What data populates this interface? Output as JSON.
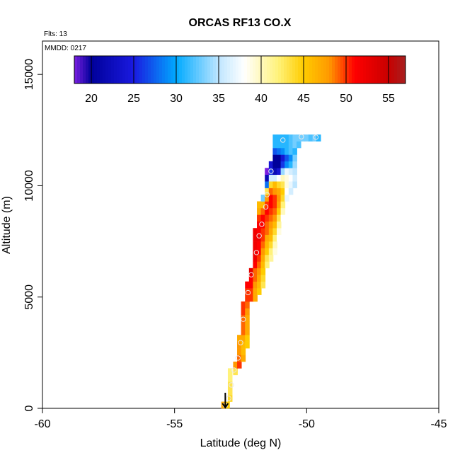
{
  "chart_data": {
    "type": "heatmap",
    "title": "ORCAS RF13 CO.X",
    "subtitle": "Flts: 13",
    "annotation": "MMDD: 0217",
    "xlabel": "Latitude (deg N)",
    "ylabel": "Altitude (m)",
    "xlim": [
      -60,
      -45
    ],
    "ylim": [
      0,
      16500
    ],
    "x_ticks": [
      -60,
      -55,
      -50,
      -45
    ],
    "y_ticks": [
      0,
      5000,
      10000,
      15000
    ],
    "colorbar": {
      "range": [
        18,
        57
      ],
      "ticks": [
        20,
        25,
        30,
        35,
        40,
        45,
        50,
        55
      ],
      "stops": [
        {
          "v": 18,
          "color": "#7a1fe0"
        },
        {
          "v": 20,
          "color": "#00009a"
        },
        {
          "v": 25,
          "color": "#1a1ae0"
        },
        {
          "v": 30,
          "color": "#00aaff"
        },
        {
          "v": 35,
          "color": "#bfe6ff"
        },
        {
          "v": 38,
          "color": "#ffffff"
        },
        {
          "v": 42,
          "color": "#fff27a"
        },
        {
          "v": 45,
          "color": "#ffcc00"
        },
        {
          "v": 48,
          "color": "#ff9900"
        },
        {
          "v": 51,
          "color": "#ff0000"
        },
        {
          "v": 55,
          "color": "#c80000"
        },
        {
          "v": 57,
          "color": "#a62020"
        }
      ]
    },
    "cell_size": {
      "dlat": 0.1667,
      "dalt": 300
    },
    "cells": [
      [
        -53.15,
        150,
        47
      ],
      [
        -53.0,
        150,
        45
      ],
      [
        -52.9,
        450,
        44
      ],
      [
        -52.9,
        750,
        43
      ],
      [
        -52.9,
        1050,
        43
      ],
      [
        -52.9,
        1350,
        42
      ],
      [
        -52.9,
        1650,
        42
      ],
      [
        -52.7,
        1650,
        43
      ],
      [
        -52.7,
        1950,
        48
      ],
      [
        -52.55,
        1950,
        50
      ],
      [
        -52.55,
        2250,
        49
      ],
      [
        -52.55,
        2550,
        48
      ],
      [
        -52.55,
        2850,
        48
      ],
      [
        -52.55,
        3150,
        47
      ],
      [
        -52.4,
        2250,
        47
      ],
      [
        -52.4,
        2550,
        46
      ],
      [
        -52.4,
        2850,
        46
      ],
      [
        -52.4,
        3150,
        47
      ],
      [
        -52.4,
        3450,
        49
      ],
      [
        -52.4,
        3750,
        49
      ],
      [
        -52.4,
        4050,
        49
      ],
      [
        -52.4,
        4350,
        50
      ],
      [
        -52.4,
        4650,
        50
      ],
      [
        -52.25,
        2850,
        45
      ],
      [
        -52.25,
        3150,
        45
      ],
      [
        -52.25,
        3450,
        47
      ],
      [
        -52.25,
        3750,
        47
      ],
      [
        -52.25,
        4050,
        47
      ],
      [
        -52.25,
        4350,
        48
      ],
      [
        -52.25,
        4650,
        49
      ],
      [
        -52.25,
        4950,
        50
      ],
      [
        -52.25,
        5250,
        50
      ],
      [
        -52.25,
        5550,
        51
      ],
      [
        -52.1,
        4950,
        50
      ],
      [
        -52.1,
        5250,
        50
      ],
      [
        -52.1,
        5550,
        51
      ],
      [
        -52.1,
        5850,
        51
      ],
      [
        -52.1,
        6150,
        53
      ],
      [
        -51.95,
        4950,
        47
      ],
      [
        -51.95,
        5250,
        47
      ],
      [
        -51.95,
        5550,
        48
      ],
      [
        -51.95,
        5850,
        49
      ],
      [
        -51.95,
        6150,
        49
      ],
      [
        -51.95,
        6450,
        51
      ],
      [
        -51.95,
        6750,
        52
      ],
      [
        -51.95,
        7050,
        52
      ],
      [
        -51.95,
        7350,
        52
      ],
      [
        -51.95,
        7650,
        52
      ],
      [
        -51.95,
        7950,
        52
      ],
      [
        -51.8,
        5250,
        45
      ],
      [
        -51.8,
        5550,
        46
      ],
      [
        -51.8,
        5850,
        47
      ],
      [
        -51.8,
        6150,
        48
      ],
      [
        -51.8,
        6450,
        49
      ],
      [
        -51.8,
        6750,
        50
      ],
      [
        -51.8,
        7050,
        51
      ],
      [
        -51.8,
        7350,
        51
      ],
      [
        -51.8,
        7650,
        52
      ],
      [
        -51.8,
        7950,
        51
      ],
      [
        -51.8,
        8250,
        51
      ],
      [
        -51.8,
        8550,
        50
      ],
      [
        -51.8,
        8850,
        47
      ],
      [
        -51.8,
        9150,
        46
      ],
      [
        -51.65,
        5550,
        43
      ],
      [
        -51.65,
        5850,
        44
      ],
      [
        -51.65,
        6150,
        45
      ],
      [
        -51.65,
        6450,
        46
      ],
      [
        -51.65,
        6750,
        47
      ],
      [
        -51.65,
        7050,
        48
      ],
      [
        -51.65,
        7350,
        49
      ],
      [
        -51.65,
        7650,
        50
      ],
      [
        -51.65,
        7950,
        50
      ],
      [
        -51.65,
        8250,
        51
      ],
      [
        -51.65,
        8550,
        51
      ],
      [
        -51.65,
        8850,
        49
      ],
      [
        -51.65,
        9150,
        46
      ],
      [
        -51.65,
        9450,
        33
      ],
      [
        -51.5,
        6450,
        42
      ],
      [
        -51.5,
        6750,
        43
      ],
      [
        -51.5,
        7050,
        45
      ],
      [
        -51.5,
        7350,
        46
      ],
      [
        -51.5,
        7650,
        47
      ],
      [
        -51.5,
        7950,
        49
      ],
      [
        -51.5,
        8250,
        49
      ],
      [
        -51.5,
        8550,
        50
      ],
      [
        -51.5,
        8850,
        51
      ],
      [
        -51.5,
        9150,
        50
      ],
      [
        -51.5,
        9450,
        48
      ],
      [
        -51.5,
        9750,
        43
      ],
      [
        -51.5,
        10050,
        28
      ],
      [
        -51.5,
        10350,
        22
      ],
      [
        -51.5,
        10650,
        18
      ],
      [
        -51.35,
        6750,
        41
      ],
      [
        -51.35,
        7050,
        42
      ],
      [
        -51.35,
        7350,
        44
      ],
      [
        -51.35,
        7650,
        46
      ],
      [
        -51.35,
        7950,
        47
      ],
      [
        -51.35,
        8250,
        48
      ],
      [
        -51.35,
        8550,
        49
      ],
      [
        -51.35,
        8850,
        50
      ],
      [
        -51.35,
        9150,
        51
      ],
      [
        -51.35,
        9450,
        51
      ],
      [
        -51.35,
        9750,
        49
      ],
      [
        -51.35,
        10050,
        44
      ],
      [
        -51.35,
        10350,
        36
      ],
      [
        -51.35,
        10650,
        26
      ],
      [
        -51.35,
        10950,
        24
      ],
      [
        -51.2,
        7050,
        39
      ],
      [
        -51.2,
        7350,
        40
      ],
      [
        -51.2,
        7650,
        42
      ],
      [
        -51.2,
        7950,
        44
      ],
      [
        -51.2,
        8250,
        46
      ],
      [
        -51.2,
        8550,
        48
      ],
      [
        -51.2,
        8850,
        49
      ],
      [
        -51.2,
        9150,
        50
      ],
      [
        -51.2,
        9450,
        50
      ],
      [
        -51.2,
        9750,
        48
      ],
      [
        -51.2,
        10050,
        46
      ],
      [
        -51.2,
        10350,
        36
      ],
      [
        -51.2,
        10650,
        22
      ],
      [
        -51.2,
        10950,
        20
      ],
      [
        -51.2,
        11250,
        20
      ],
      [
        -51.2,
        11550,
        27
      ],
      [
        -51.2,
        11850,
        31
      ],
      [
        -51.2,
        12150,
        31
      ],
      [
        -51.05,
        7650,
        38
      ],
      [
        -51.05,
        7950,
        39
      ],
      [
        -51.05,
        8250,
        41
      ],
      [
        -51.05,
        8550,
        43
      ],
      [
        -51.05,
        8850,
        45
      ],
      [
        -51.05,
        9150,
        47
      ],
      [
        -51.05,
        9450,
        48
      ],
      [
        -51.05,
        9750,
        47
      ],
      [
        -51.05,
        10050,
        44
      ],
      [
        -51.05,
        10350,
        38
      ],
      [
        -51.05,
        10650,
        24
      ],
      [
        -51.05,
        10950,
        20
      ],
      [
        -51.05,
        11250,
        20
      ],
      [
        -51.05,
        11550,
        28
      ],
      [
        -51.05,
        11850,
        31
      ],
      [
        -51.05,
        12150,
        31
      ],
      [
        -50.9,
        8550,
        38
      ],
      [
        -50.9,
        8850,
        40
      ],
      [
        -50.9,
        9150,
        42
      ],
      [
        -50.9,
        9450,
        44
      ],
      [
        -50.9,
        9750,
        45
      ],
      [
        -50.9,
        10050,
        43
      ],
      [
        -50.9,
        10350,
        40
      ],
      [
        -50.9,
        10650,
        34
      ],
      [
        -50.9,
        10950,
        26
      ],
      [
        -50.9,
        11250,
        24
      ],
      [
        -50.9,
        11550,
        29
      ],
      [
        -50.9,
        11850,
        31
      ],
      [
        -50.9,
        12150,
        31
      ],
      [
        -50.75,
        9450,
        37
      ],
      [
        -50.75,
        9750,
        38
      ],
      [
        -50.75,
        10050,
        39
      ],
      [
        -50.75,
        10350,
        39
      ],
      [
        -50.75,
        10650,
        37
      ],
      [
        -50.75,
        10950,
        29
      ],
      [
        -50.75,
        11250,
        27
      ],
      [
        -50.75,
        11550,
        31
      ],
      [
        -50.75,
        11850,
        31
      ],
      [
        -50.75,
        12150,
        31
      ],
      [
        -50.6,
        9750,
        36
      ],
      [
        -50.6,
        10050,
        37
      ],
      [
        -50.6,
        10350,
        38
      ],
      [
        -50.6,
        10650,
        36
      ],
      [
        -50.6,
        10950,
        31
      ],
      [
        -50.6,
        11250,
        29
      ],
      [
        -50.6,
        11550,
        32
      ],
      [
        -50.6,
        11850,
        32
      ],
      [
        -50.6,
        12150,
        32
      ],
      [
        -50.45,
        10050,
        35
      ],
      [
        -50.45,
        10350,
        36
      ],
      [
        -50.45,
        10650,
        35
      ],
      [
        -50.45,
        10950,
        34
      ],
      [
        -50.45,
        11250,
        33
      ],
      [
        -50.45,
        11550,
        31
      ],
      [
        -50.45,
        11850,
        33
      ],
      [
        -50.45,
        12150,
        33
      ],
      [
        -50.3,
        11850,
        32
      ],
      [
        -50.3,
        12150,
        33
      ],
      [
        -50.15,
        12150,
        33
      ],
      [
        -50.0,
        12150,
        33
      ],
      [
        -49.85,
        12150,
        32
      ],
      [
        -49.7,
        12150,
        33
      ],
      [
        -49.55,
        12150,
        31
      ]
    ],
    "flight_points": [
      [
        -53.08,
        140
      ],
      [
        -52.95,
        450
      ],
      [
        -52.85,
        1050
      ],
      [
        -52.75,
        1720
      ],
      [
        -52.6,
        2260
      ],
      [
        -52.5,
        2950
      ],
      [
        -52.4,
        4000
      ],
      [
        -52.22,
        5200
      ],
      [
        -52.1,
        6000
      ],
      [
        -51.9,
        7000
      ],
      [
        -51.8,
        7750
      ],
      [
        -51.7,
        8270
      ],
      [
        -51.55,
        9050
      ],
      [
        -51.5,
        9600
      ],
      [
        -51.35,
        10650
      ],
      [
        -50.9,
        12050
      ],
      [
        -50.2,
        12200
      ],
      [
        -49.65,
        12180
      ]
    ],
    "arrow": {
      "lat": -53.08,
      "from_alt": 700,
      "to_alt": 0
    }
  }
}
